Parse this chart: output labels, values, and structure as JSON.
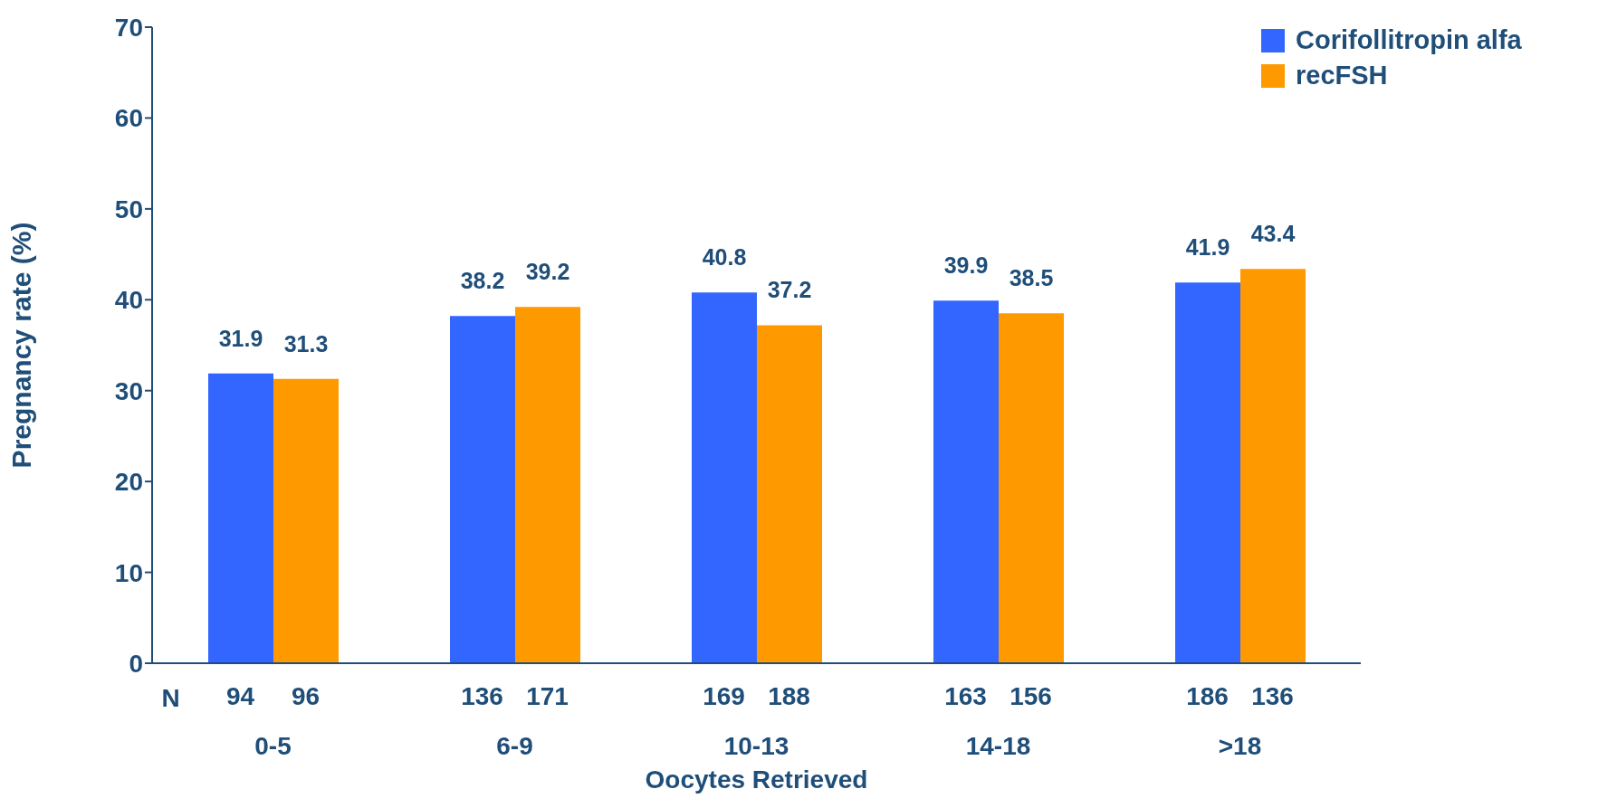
{
  "chart_data": {
    "type": "bar",
    "xlabel": "Oocytes Retrieved",
    "ylabel": "Pregnancy rate (%)",
    "categories": [
      "0-5",
      "6-9",
      "10-13",
      "14-18",
      ">18"
    ],
    "series": [
      {
        "name": "Corifollitropin alfa",
        "color": "#3366ff",
        "values": [
          31.9,
          38.2,
          40.8,
          39.9,
          41.9
        ]
      },
      {
        "name": "recFSH",
        "color": "#ff9900",
        "values": [
          31.3,
          39.2,
          37.2,
          38.5,
          43.4
        ]
      }
    ],
    "ylim": [
      0,
      70
    ],
    "yticks": [
      0,
      10,
      20,
      30,
      40,
      50,
      60,
      70
    ],
    "grid": false,
    "legend": "top right",
    "data_labels": true,
    "annotations": [
      "N",
      "94",
      "96",
      "136",
      "171",
      "169",
      "188",
      "163",
      "156",
      "186",
      "136"
    ]
  }
}
